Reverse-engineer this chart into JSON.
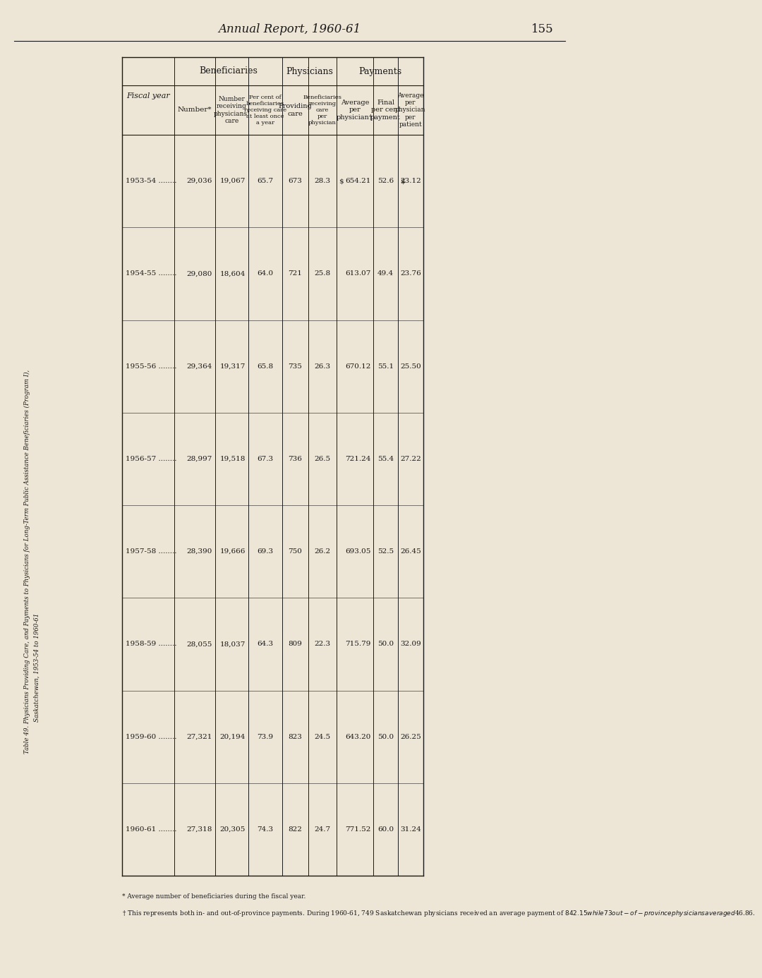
{
  "page_header": "Annual Report, 1960-61",
  "page_number": "155",
  "table_title_line1": "Table 49. Physicians Providing Care, and Payments to Physicians for Long-Term Public Assistance Beneficiaries (Program I),",
  "table_title_line2": "Saskatchewan, 1953-54 to 1960-61",
  "fiscal_years": [
    "1953-54",
    "1954-55",
    "1955-56",
    "1956-57",
    "1957-58",
    "1958-59",
    "1959-60",
    "1960-61"
  ],
  "number": [
    29036,
    29080,
    29364,
    28997,
    28390,
    28055,
    27321,
    27318
  ],
  "receiving_care": [
    19067,
    18604,
    19317,
    19518,
    19666,
    18037,
    20194,
    20305
  ],
  "per_cent": [
    65.7,
    64.0,
    65.8,
    67.3,
    69.3,
    64.3,
    73.9,
    74.3
  ],
  "providing_care": [
    673,
    721,
    735,
    736,
    750,
    809,
    823,
    822
  ],
  "beneficiaries_per_physician": [
    28.3,
    25.8,
    26.3,
    26.5,
    26.2,
    22.3,
    24.5,
    24.7
  ],
  "avg_per_physician": [
    654.21,
    613.07,
    670.12,
    721.24,
    693.05,
    715.79,
    643.2,
    771.52
  ],
  "final_per_cent": [
    52.6,
    49.4,
    55.1,
    55.4,
    52.5,
    50.0,
    50.0,
    60.0
  ],
  "avg_per_patient": [
    23.12,
    23.76,
    25.5,
    27.22,
    26.45,
    32.09,
    26.25,
    31.24
  ],
  "footnote1": "* Average number of beneficiaries during the fiscal year.",
  "footnote2": "† This represents both in- and out-of-province payments. During 1960-61, 749 Saskatchewan physicians received an average payment of $842.15 while 73 out-of-province physicians averaged $46.86.",
  "bg_color": "#ede5d5",
  "text_color": "#1a1a1a"
}
